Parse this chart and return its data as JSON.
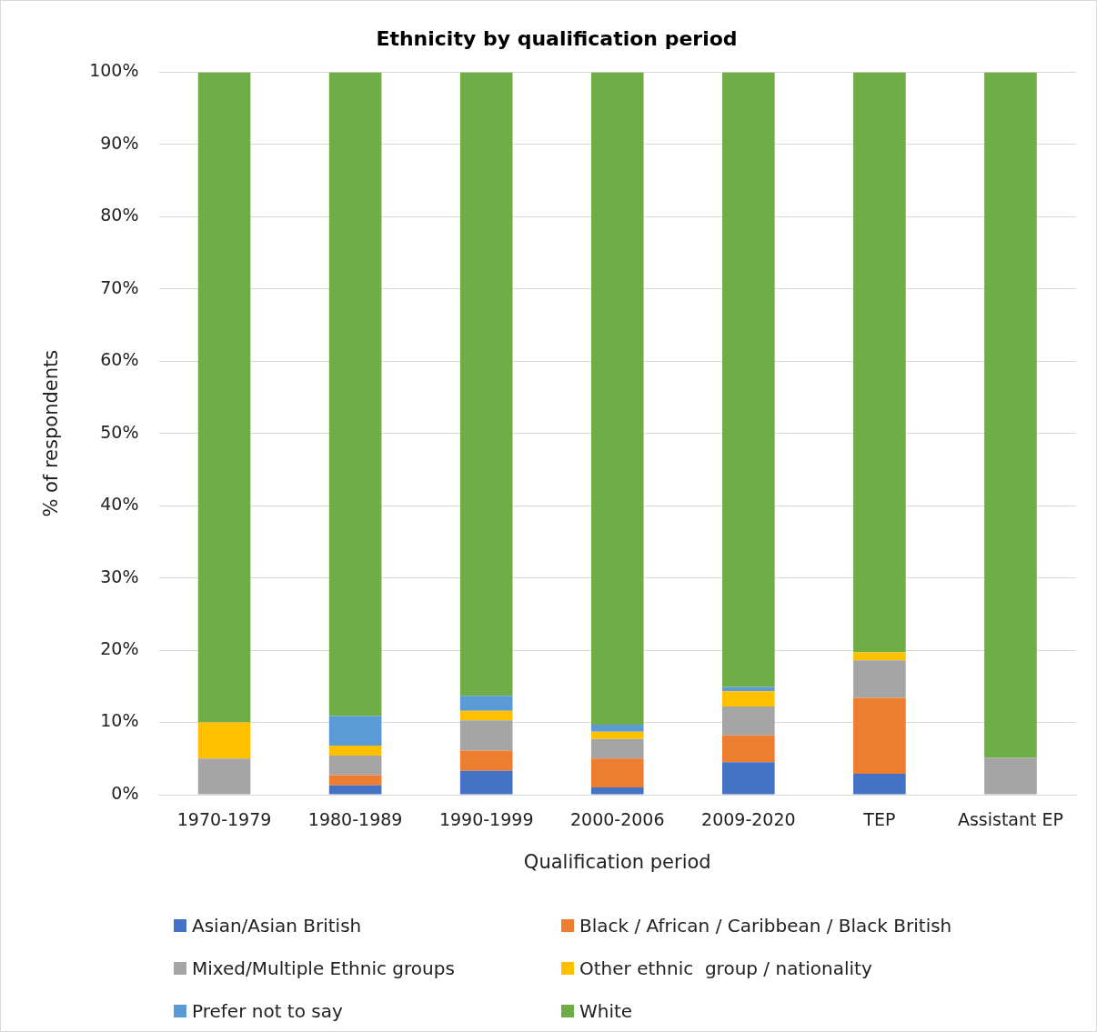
{
  "chart_data": {
    "type": "bar",
    "title": "Ethnicity by qualification period",
    "xlabel": "Qualification period",
    "ylabel": "% of respondents",
    "categories": [
      "1970-1979",
      "1980-1989",
      "1990-1999",
      "2000-2006",
      "2009-2020",
      "TEP",
      "Assistant EP"
    ],
    "stacked": true,
    "ylim": [
      0,
      100
    ],
    "yticks": [
      {
        "value": 0,
        "label": "0%"
      },
      {
        "value": 10,
        "label": "10%"
      },
      {
        "value": 20,
        "label": "20%"
      },
      {
        "value": 30,
        "label": "30%"
      },
      {
        "value": 40,
        "label": "40%"
      },
      {
        "value": 50,
        "label": "50%"
      },
      {
        "value": 60,
        "label": "60%"
      },
      {
        "value": 70,
        "label": "70%"
      },
      {
        "value": 80,
        "label": "80%"
      },
      {
        "value": 90,
        "label": "90%"
      },
      {
        "value": 100,
        "label": "100%"
      }
    ],
    "grid": "y",
    "legend": "bottom",
    "series": [
      {
        "name": "Asian/Asian British",
        "color": "#4472c4",
        "values": [
          0,
          1.3,
          3.3,
          1.0,
          4.5,
          2.9,
          0
        ]
      },
      {
        "name": "Black / African / Caribbean / Black British",
        "color": "#ed7d31",
        "values": [
          0,
          1.4,
          2.8,
          4.0,
          3.7,
          10.5,
          0
        ]
      },
      {
        "name": "Mixed/Multiple Ethnic groups",
        "color": "#a5a5a5",
        "values": [
          5,
          2.7,
          4.2,
          2.7,
          4.0,
          5.2,
          5.1
        ]
      },
      {
        "name": "Other ethnic  group / nationality",
        "color": "#ffc000",
        "values": [
          5,
          1.4,
          1.3,
          1.0,
          2.1,
          1.1,
          0
        ]
      },
      {
        "name": "Prefer not to say",
        "color": "#5b9bd5",
        "values": [
          0,
          4.1,
          2.1,
          1.0,
          0.6,
          0,
          0
        ]
      },
      {
        "name": "White",
        "color": "#70ad47",
        "values": [
          90,
          89.1,
          86.3,
          90.3,
          85.1,
          80.3,
          94.9
        ]
      }
    ]
  }
}
